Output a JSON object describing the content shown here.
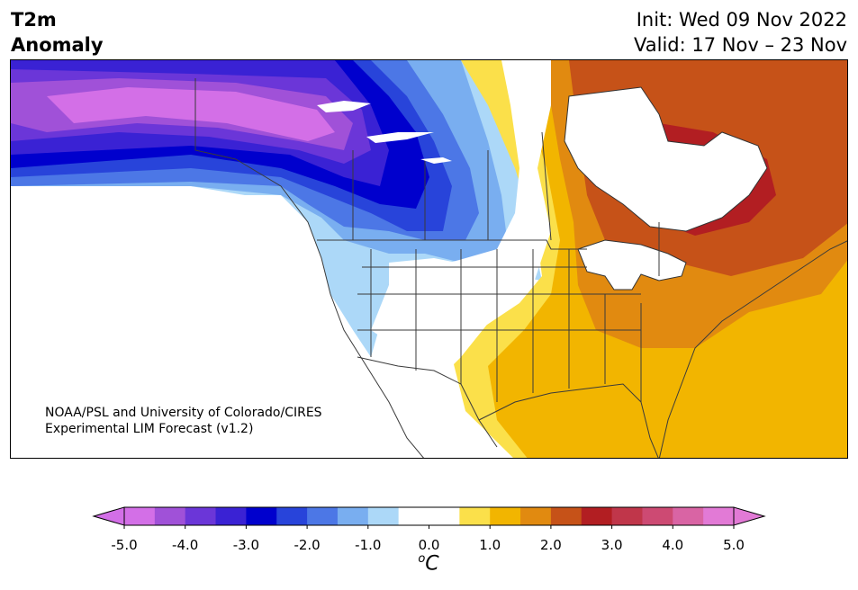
{
  "header": {
    "title_line1": "T2m",
    "title_line2": "Anomaly",
    "init_text": "Init: Wed 09 Nov 2022",
    "valid_text": "Valid: 17 Nov – 23 Nov"
  },
  "credit": {
    "line1": "NOAA/PSL and University of Colorado/CIRES",
    "line2": "Experimental LIM Forecast (v1.2)"
  },
  "colorbar": {
    "unit_base": "C",
    "unit_sup": "o",
    "ticks": [
      "-5.0",
      "-4.0",
      "-3.0",
      "-2.0",
      "-1.0",
      "0.0",
      "1.0",
      "2.0",
      "3.0",
      "4.0",
      "5.0"
    ],
    "min": -5.0,
    "max": 5.0,
    "step": 0.5,
    "colors": [
      "#d36fe7",
      "#a051d8",
      "#6b36d8",
      "#3a22d4",
      "#0000cd",
      "#2844da",
      "#4c77e6",
      "#79aef0",
      "#acd8f8",
      "#ffffff",
      "#ffffff",
      "#fbe04a",
      "#f2b500",
      "#e18a10",
      "#c65218",
      "#b21e22",
      "#c0364a",
      "#cd4a73",
      "#d964a4",
      "#e27ad6"
    ],
    "under_color": "#d36fe7",
    "over_color": "#e27ad6"
  },
  "map": {
    "region": "North America",
    "variable": "2m temperature anomaly"
  }
}
